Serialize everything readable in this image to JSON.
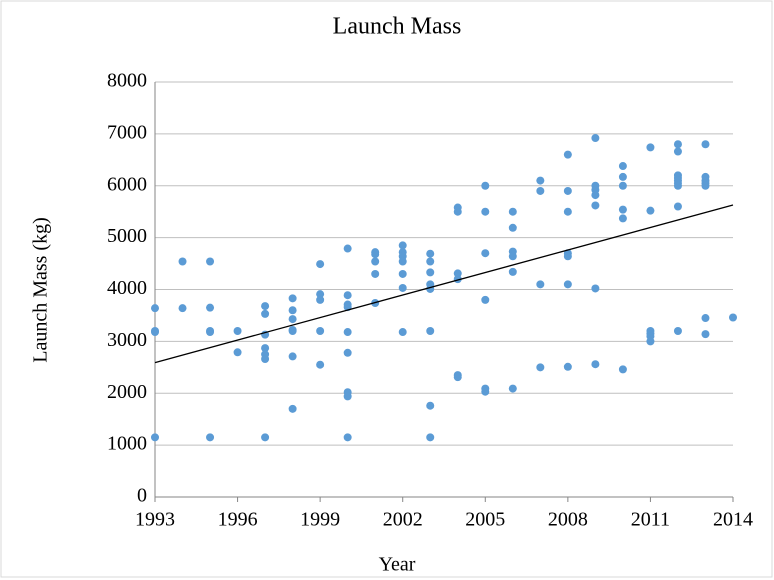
{
  "chart_data": {
    "type": "scatter",
    "title": "Launch Mass",
    "x_label": "Year",
    "y_label": "Launch Mass (kg)",
    "color": "#5b9bd5",
    "grid": true,
    "xlim": [
      1993,
      2014
    ],
    "xticks": [
      1993,
      1996,
      1999,
      2002,
      2005,
      2008,
      2011,
      2014
    ],
    "ylim": [
      0,
      8000
    ],
    "yticks": [
      0,
      1000,
      2000,
      3000,
      4000,
      5000,
      6000,
      7000,
      8000
    ],
    "x": [
      1993,
      1993,
      1993,
      1993,
      1994,
      1994,
      1995,
      1995,
      1995,
      1995,
      1995,
      1996,
      1996,
      1997,
      1997,
      1997,
      1997,
      1997,
      1997,
      1997,
      1998,
      1998,
      1998,
      1998,
      1998,
      1998,
      1998,
      1999,
      1999,
      1999,
      1999,
      1999,
      2000,
      2000,
      2000,
      2000,
      2000,
      2000,
      2000,
      2000,
      2000,
      2001,
      2001,
      2001,
      2001,
      2001,
      2002,
      2002,
      2002,
      2002,
      2002,
      2002,
      2002,
      2003,
      2003,
      2003,
      2003,
      2003,
      2003,
      2003,
      2003,
      2004,
      2004,
      2004,
      2004,
      2004,
      2004,
      2005,
      2005,
      2005,
      2005,
      2005,
      2005,
      2006,
      2006,
      2006,
      2006,
      2006,
      2006,
      2007,
      2007,
      2007,
      2007,
      2008,
      2008,
      2008,
      2008,
      2008,
      2008,
      2008,
      2009,
      2009,
      2009,
      2009,
      2009,
      2009,
      2009,
      2010,
      2010,
      2010,
      2010,
      2010,
      2010,
      2011,
      2011,
      2011,
      2011,
      2011,
      2011,
      2012,
      2012,
      2012,
      2012,
      2012,
      2012,
      2012,
      2012,
      2012,
      2013,
      2013,
      2013,
      2013,
      2013,
      2013,
      2013,
      2014
    ],
    "y": [
      3640,
      3200,
      3180,
      1150,
      4540,
      3640,
      4540,
      3650,
      3200,
      3180,
      1150,
      3200,
      2790,
      3680,
      3530,
      3130,
      2870,
      2750,
      2660,
      1150,
      3830,
      3600,
      3430,
      3220,
      3200,
      2710,
      1700,
      4490,
      3910,
      3800,
      3200,
      2550,
      4790,
      3890,
      3710,
      3660,
      3180,
      2780,
      2020,
      1940,
      1150,
      4720,
      4680,
      4540,
      4300,
      3740,
      4850,
      4720,
      4640,
      4540,
      4300,
      4030,
      3180,
      4690,
      4540,
      4330,
      4100,
      4010,
      3200,
      1760,
      1150,
      5580,
      5500,
      4310,
      4200,
      2350,
      2310,
      6000,
      5500,
      4700,
      3800,
      2090,
      2030,
      5500,
      5190,
      4730,
      4640,
      4340,
      2090,
      6100,
      5900,
      4100,
      2500,
      6600,
      5900,
      5500,
      4700,
      4640,
      4100,
      2510,
      6920,
      6000,
      5920,
      5820,
      5620,
      4020,
      2560,
      6380,
      6170,
      6000,
      5540,
      5370,
      2460,
      6740,
      5520,
      3200,
      3150,
      3100,
      3000,
      6800,
      6660,
      6200,
      6150,
      6100,
      6050,
      6000,
      5600,
      3200,
      6800,
      6170,
      6100,
      6050,
      6000,
      3450,
      3140,
      3460
    ],
    "trendline": {
      "color": "#000000",
      "x": [
        1993,
        2014
      ],
      "values": [
        2590,
        5630
      ]
    }
  }
}
